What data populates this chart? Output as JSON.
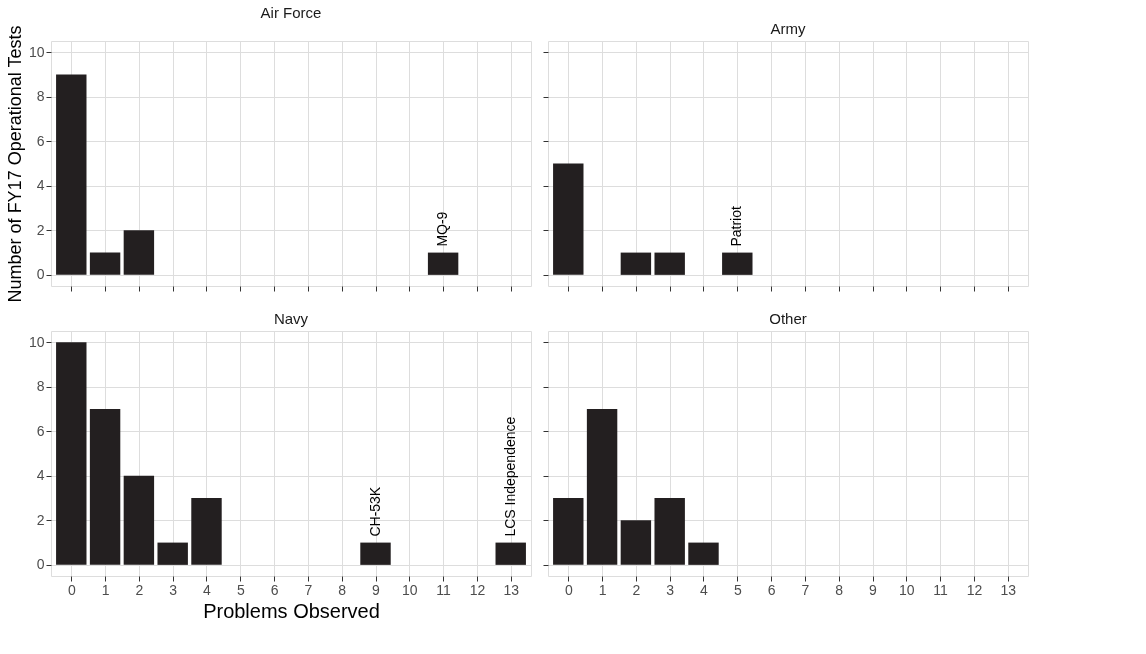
{
  "chart_data": [
    {
      "type": "bar",
      "title": "Air Force",
      "ylabel": "Number of FY17 Operational Tests",
      "x": [
        0,
        1,
        2,
        11
      ],
      "values": [
        9,
        1,
        2,
        1
      ],
      "color": "#231f20",
      "xlim": [
        -0.6,
        13.6
      ],
      "ylim": [
        -0.5,
        10.5
      ],
      "xticks": [
        0,
        1,
        2,
        3,
        4,
        5,
        6,
        7,
        8,
        9,
        10,
        11,
        12,
        13
      ],
      "yticks": [
        0,
        2,
        4,
        6,
        8,
        10
      ],
      "grid": true,
      "legend": false,
      "tick_labels": "y",
      "annotations": [
        {
          "text": "MQ-9",
          "x": 11,
          "y": 1
        }
      ]
    },
    {
      "type": "bar",
      "title": "Army",
      "x": [
        0,
        2,
        3,
        5
      ],
      "values": [
        5,
        1,
        1,
        1
      ],
      "color": "#231f20",
      "xlim": [
        -0.6,
        13.6
      ],
      "ylim": [
        -0.5,
        10.5
      ],
      "xticks": [
        0,
        1,
        2,
        3,
        4,
        5,
        6,
        7,
        8,
        9,
        10,
        11,
        12,
        13
      ],
      "yticks": [
        0,
        2,
        4,
        6,
        8,
        10
      ],
      "grid": true,
      "legend": false,
      "tick_labels": false,
      "annotations": [
        {
          "text": "Patriot",
          "x": 5,
          "y": 1
        }
      ]
    },
    {
      "type": "bar",
      "title": "Navy",
      "xlabel": "Problems Observed",
      "x": [
        0,
        1,
        2,
        3,
        4,
        9,
        13
      ],
      "values": [
        10,
        7,
        4,
        1,
        3,
        1,
        1
      ],
      "color": "#231f20",
      "xlim": [
        -0.6,
        13.6
      ],
      "ylim": [
        -0.5,
        10.5
      ],
      "xticks": [
        0,
        1,
        2,
        3,
        4,
        5,
        6,
        7,
        8,
        9,
        10,
        11,
        12,
        13
      ],
      "yticks": [
        0,
        2,
        4,
        6,
        8,
        10
      ],
      "grid": true,
      "legend": false,
      "annotations": [
        {
          "text": "CH-53K",
          "x": 9,
          "y": 1
        },
        {
          "text": "LCS Independence",
          "x": 13,
          "y": 1
        }
      ]
    },
    {
      "type": "bar",
      "title": "Other",
      "x": [
        0,
        1,
        2,
        3,
        4
      ],
      "values": [
        3,
        7,
        2,
        3,
        1
      ],
      "color": "#231f20",
      "xlim": [
        -0.6,
        13.6
      ],
      "ylim": [
        -0.5,
        10.5
      ],
      "xticks": [
        0,
        1,
        2,
        3,
        4,
        5,
        6,
        7,
        8,
        9,
        10,
        11,
        12,
        13
      ],
      "yticks": [
        0,
        2,
        4,
        6,
        8,
        10
      ],
      "grid": true,
      "legend": false,
      "tick_labels": "x"
    }
  ]
}
